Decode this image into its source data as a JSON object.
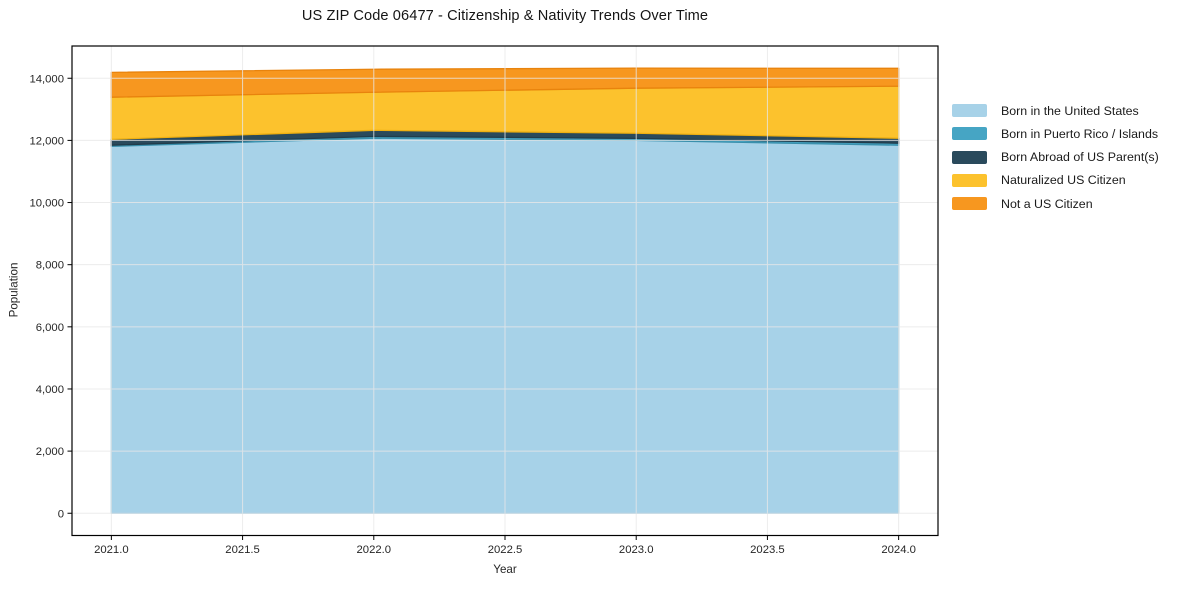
{
  "chart_data": {
    "type": "area",
    "stacked": true,
    "title": "US ZIP Code 06477 - Citizenship & Nativity Trends Over Time",
    "xlabel": "Year",
    "ylabel": "Population",
    "x": [
      2021,
      2022,
      2023,
      2024
    ],
    "series": [
      {
        "name": "Born in the United States",
        "color": "#A7D2E8",
        "edge": "#8CC1DC",
        "values": [
          11810,
          12070,
          12000,
          11845
        ]
      },
      {
        "name": "Born in Puerto Rico / Islands",
        "color": "#46A5C4",
        "edge": "#3A90AC",
        "values": [
          35,
          60,
          65,
          65
        ]
      },
      {
        "name": "Born Abroad of US Parent(s)",
        "color": "#2A4A5C",
        "edge": "#213C4B",
        "values": [
          190,
          195,
          165,
          160
        ]
      },
      {
        "name": "Naturalized US Citizen",
        "color": "#FCC22D",
        "edge": "#EFB011",
        "values": [
          1355,
          1225,
          1450,
          1675
        ]
      },
      {
        "name": "Not a US Citizen",
        "color": "#F7971F",
        "edge": "#E8830D",
        "values": [
          800,
          740,
          645,
          575
        ]
      }
    ],
    "x_ticks": [
      2021.0,
      2021.5,
      2022.0,
      2022.5,
      2023.0,
      2023.5,
      2024.0
    ],
    "x_tick_labels": [
      "2021.0",
      "2021.5",
      "2022.0",
      "2022.5",
      "2023.0",
      "2023.5",
      "2024.0"
    ],
    "y_ticks": [
      0,
      2000,
      4000,
      6000,
      8000,
      10000,
      12000,
      14000
    ],
    "y_tick_labels": [
      "0",
      "2,000",
      "4,000",
      "6,000",
      "8,000",
      "10,000",
      "12,000",
      "14,000"
    ],
    "xlim": [
      2020.85,
      2024.15
    ],
    "ylim": [
      -716,
      15038
    ],
    "grid": true,
    "legend_position": "right-outside"
  },
  "style_colors": {
    "background": "#ffffff",
    "grid": "#e8e8e8",
    "spine": "#000000",
    "tick": "#000000"
  }
}
